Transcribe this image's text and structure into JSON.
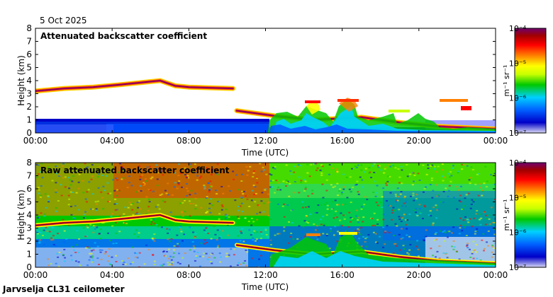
{
  "date": "5 Oct 2025",
  "instrument": "Jarvselja CL31 ceilometer",
  "chart_data": [
    {
      "type": "heatmap",
      "title": "Attenuated backscatter coefficient",
      "xlabel": "Time (UTC)",
      "ylabel": "Height (km)",
      "xlim": [
        0,
        24
      ],
      "ylim": [
        0,
        8
      ],
      "xticks": [
        "00:00",
        "04:00",
        "08:00",
        "12:00",
        "16:00",
        "20:00",
        "00:00"
      ],
      "yticks": [
        "0",
        "1",
        "2",
        "3",
        "4",
        "5",
        "6",
        "7",
        "8"
      ],
      "colorbar": {
        "label": "m⁻¹ sr⁻¹",
        "ticks": [
          "10⁻⁴",
          "10⁻⁵",
          "10⁻⁶",
          "10⁻⁷"
        ],
        "log_range": [
          -7,
          -4
        ]
      },
      "features": {
        "cloud_layer_heights_km": [
          {
            "t": 0.0,
            "h": 3.2
          },
          {
            "t": 1.5,
            "h": 3.4
          },
          {
            "t": 3.0,
            "h": 3.5
          },
          {
            "t": 4.5,
            "h": 3.7
          },
          {
            "t": 6.5,
            "h": 4.0
          },
          {
            "t": 7.3,
            "h": 3.6
          },
          {
            "t": 8.0,
            "h": 3.5
          },
          {
            "t": 10.3,
            "h": 3.4
          },
          {
            "t": 10.5,
            "h": 1.7
          },
          {
            "t": 12.5,
            "h": 1.3
          },
          {
            "t": 14.5,
            "h": 1.0
          },
          {
            "t": 17.0,
            "h": 1.2
          },
          {
            "t": 19.0,
            "h": 0.8
          },
          {
            "t": 21.0,
            "h": 0.5
          },
          {
            "t": 24.0,
            "h": 0.3
          }
        ],
        "boundary_layer_top_km": 0.9
      }
    },
    {
      "type": "heatmap",
      "title": "Raw attenuated backscatter coefficient",
      "xlabel": "Time (UTC)",
      "ylabel": "Height (km)",
      "xlim": [
        0,
        24
      ],
      "ylim": [
        0,
        8
      ],
      "xticks": [
        "00:00",
        "04:00",
        "08:00",
        "12:00",
        "16:00",
        "20:00",
        "00:00"
      ],
      "yticks": [
        "0",
        "1",
        "2",
        "3",
        "4",
        "5",
        "6",
        "7",
        "8"
      ],
      "colorbar": {
        "label": "m⁻¹ sr⁻¹",
        "ticks": [
          "10⁻⁴",
          "10⁻⁵",
          "10⁻⁶",
          "10⁻⁷"
        ],
        "log_range": [
          -7,
          -4
        ]
      }
    }
  ],
  "colors": {
    "cmap": [
      "#d9d9f5",
      "#0000c8",
      "#0060ff",
      "#00d0ff",
      "#00c800",
      "#c8ff00",
      "#ffff00",
      "#ff8000",
      "#ff0000",
      "#a00000",
      "#700070"
    ]
  }
}
